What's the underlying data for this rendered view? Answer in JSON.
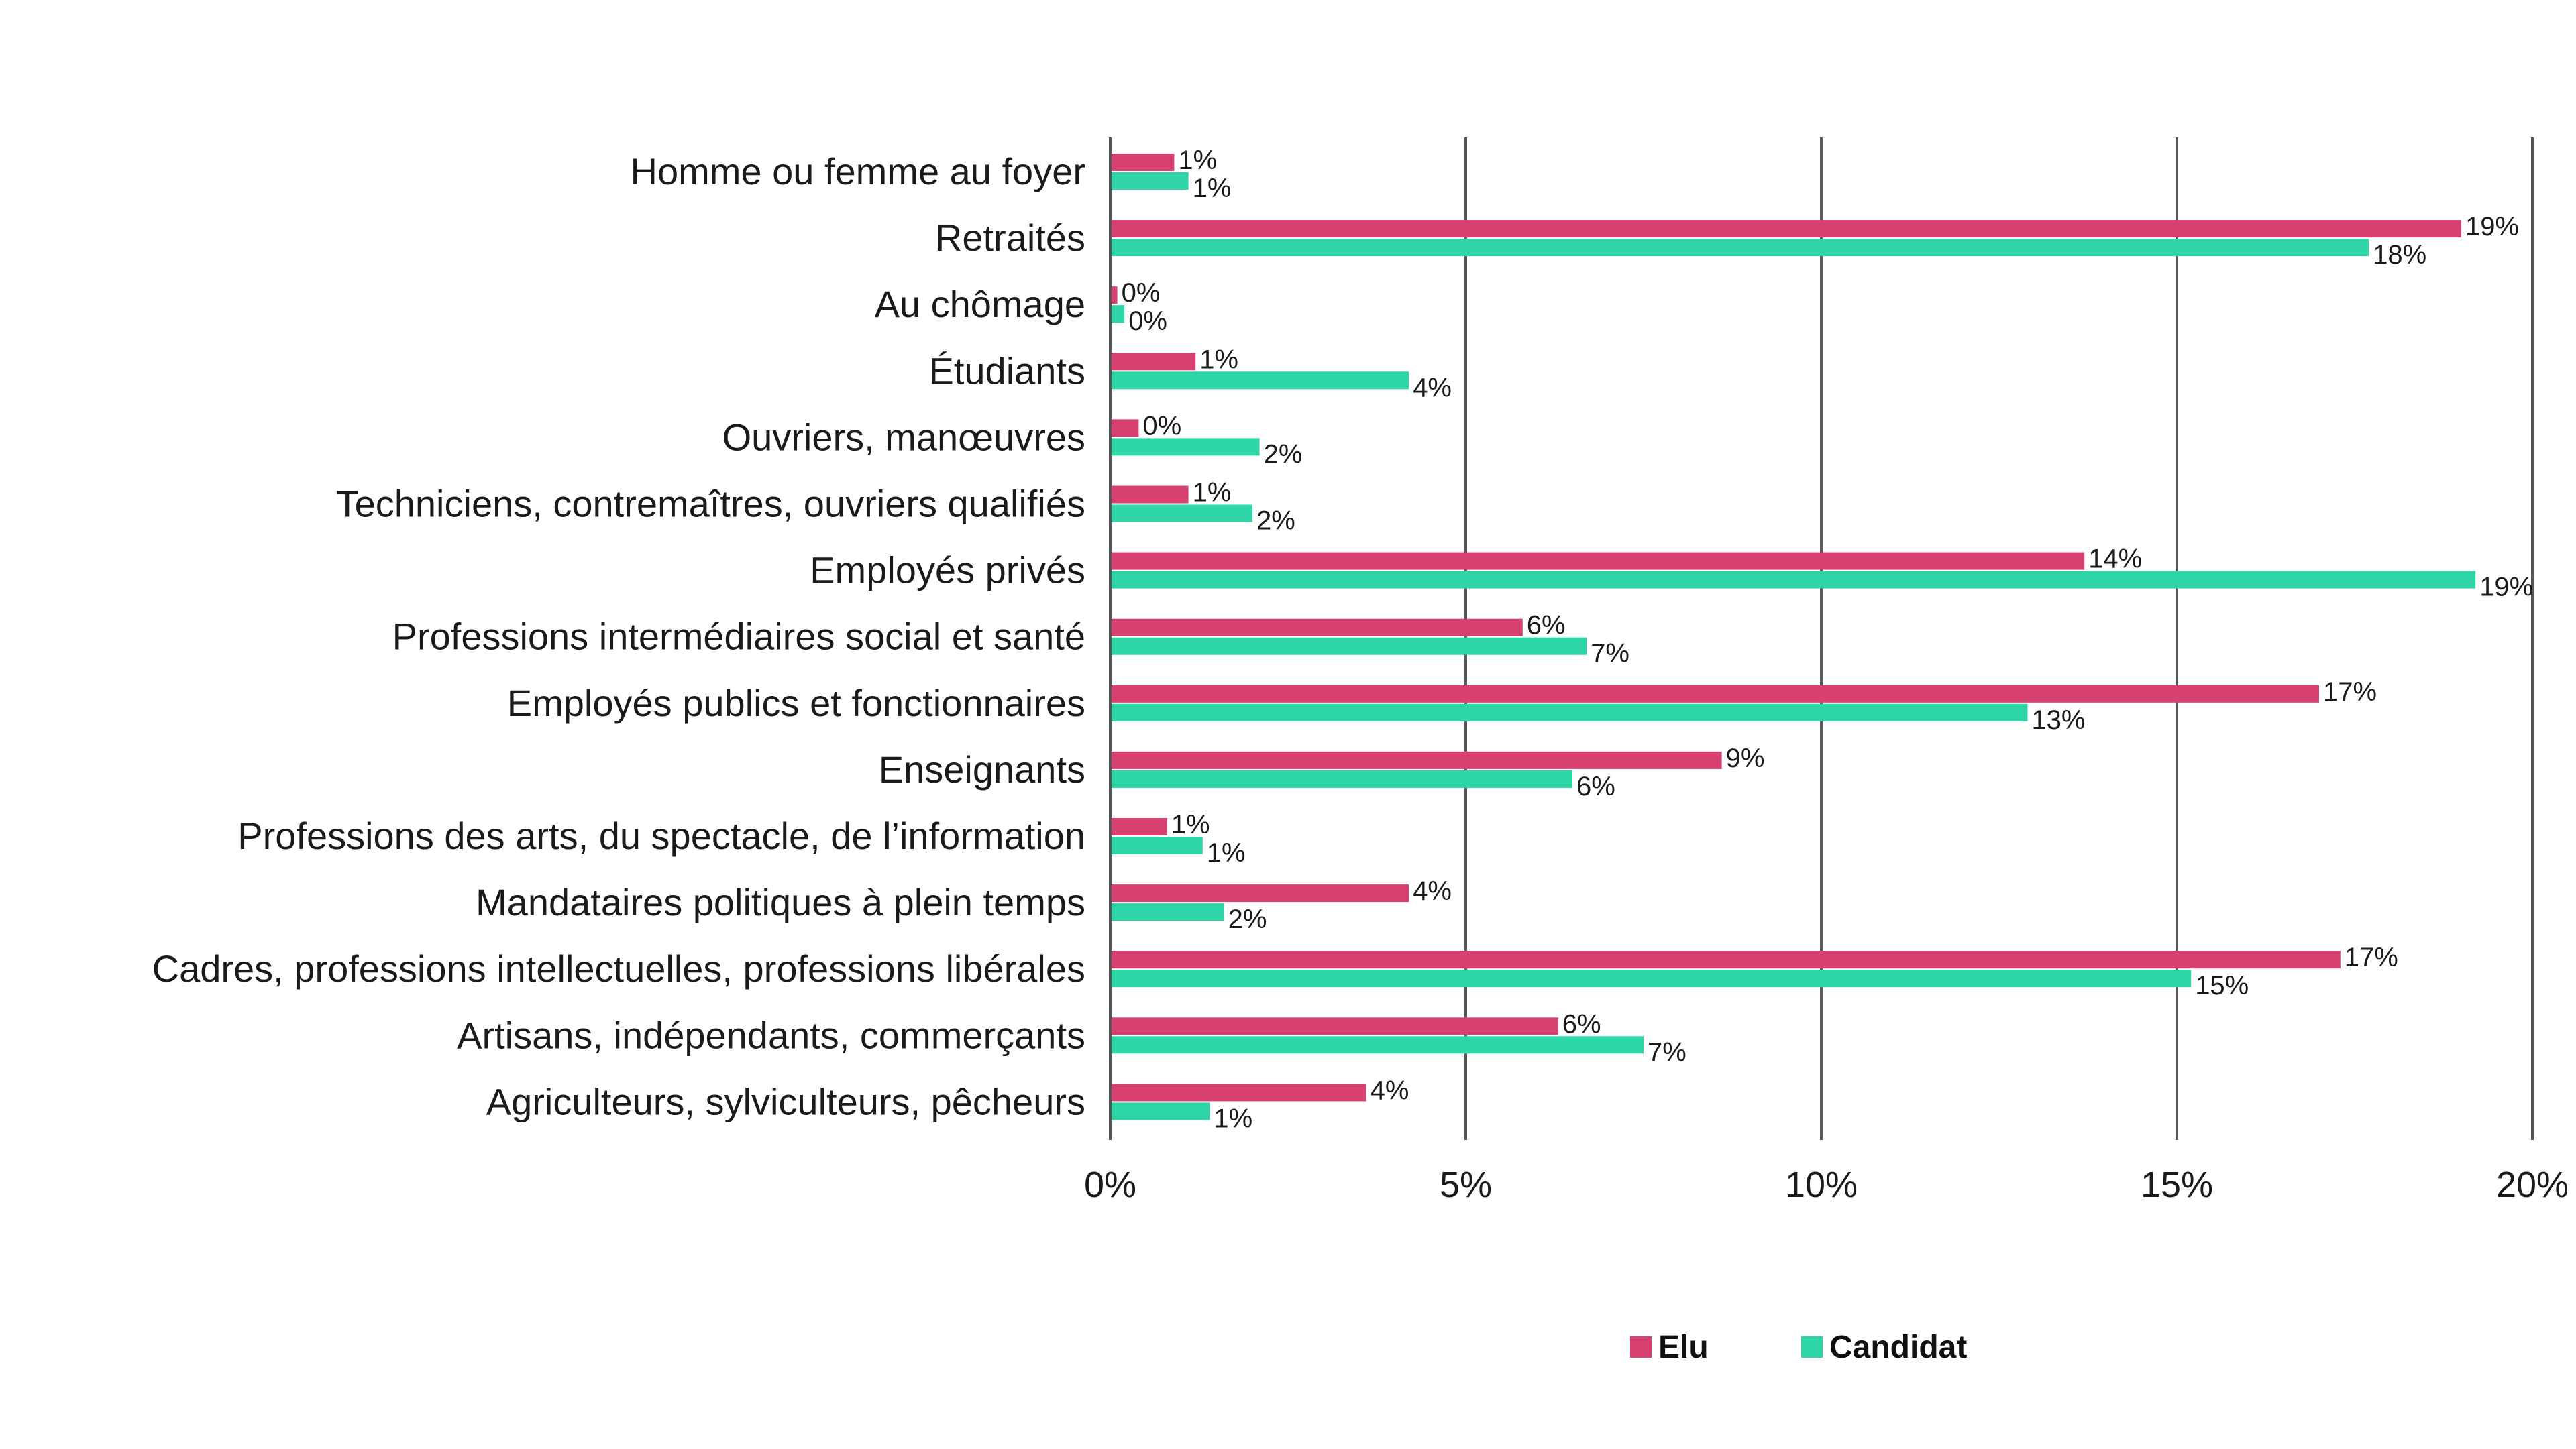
{
  "chart_data": {
    "type": "bar",
    "orientation": "horizontal",
    "title": "",
    "xlabel": "",
    "ylabel": "",
    "xlim": [
      0,
      20
    ],
    "x_ticks": [
      "0%",
      "5%",
      "10%",
      "15%",
      "20%"
    ],
    "grid": "vertical",
    "legend_position": "bottom",
    "categories": [
      "Homme ou femme au foyer",
      "Retraités",
      "Au chômage",
      "Étudiants",
      "Ouvriers, manœuvres",
      "Techniciens, contremaîtres, ouvriers qualifiés",
      "Employés privés",
      "Professions intermédiaires social et santé",
      "Employés publics et  fonctionnaires",
      "Enseignants",
      "Professions des arts, du spectacle, de l’information",
      "Mandataires politiques à plein temps",
      "Cadres, professions intellectuelles, professions libérales",
      "Artisans, indépendants, commerçants",
      "Agriculteurs, sylviculteurs, pêcheurs"
    ],
    "series": [
      {
        "name": "Elu",
        "color": "#d6416f",
        "values": [
          0.9,
          19.0,
          0.1,
          1.2,
          0.4,
          1.1,
          13.7,
          5.8,
          17.0,
          8.6,
          0.8,
          4.2,
          17.3,
          6.3,
          3.6
        ],
        "labels": [
          "1%",
          "19%",
          "0%",
          "1%",
          "0%",
          "1%",
          "14%",
          "6%",
          "17%",
          "9%",
          "1%",
          "4%",
          "17%",
          "6%",
          "4%"
        ]
      },
      {
        "name": "Candidat",
        "color": "#2ed6a7",
        "values": [
          1.1,
          17.7,
          0.2,
          4.2,
          2.1,
          2.0,
          19.2,
          6.7,
          12.9,
          6.5,
          1.3,
          1.6,
          15.2,
          7.5,
          1.4
        ],
        "labels": [
          "1%",
          "18%",
          "0%",
          "4%",
          "2%",
          "2%",
          "19%",
          "7%",
          "13%",
          "6%",
          "1%",
          "2%",
          "15%",
          "7%",
          "1%"
        ]
      }
    ]
  }
}
